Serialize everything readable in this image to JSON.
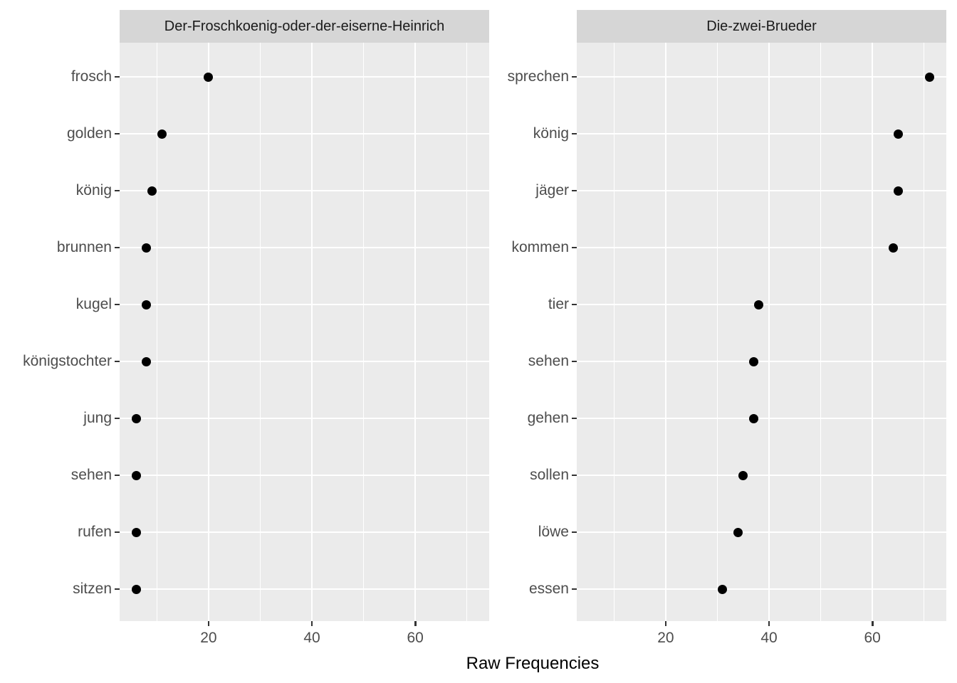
{
  "figure": {
    "xlabel": "Raw Frequencies"
  },
  "style": {
    "background": "#ffffff",
    "panel_fill": "#ebebeb",
    "strip_fill": "#d6d6d6",
    "grid_color": "#ffffff",
    "tick_color": "#333333",
    "axis_text_color": "#4d4d4d",
    "strip_text_color": "#1a1a1a",
    "point_color": "#000000"
  },
  "chart_data": [
    {
      "type": "scatter",
      "subtype": "horizontal-dot-plot",
      "facet_title": "Der-Froschkoenig-oder-der-eiserne-Heinrich",
      "categories": [
        "frosch",
        "golden",
        "könig",
        "brunnen",
        "kugel",
        "königstochter",
        "jung",
        "sehen",
        "rufen",
        "sitzen"
      ],
      "values": [
        20,
        11,
        9,
        8,
        8,
        8,
        6,
        6,
        6,
        6
      ],
      "xlabel": "Raw Frequencies",
      "xlim": [
        2.8,
        74.3
      ],
      "xticks": [
        20,
        40,
        60
      ],
      "xticks_minor": [
        10,
        30,
        50,
        70
      ],
      "grid": "on",
      "legend": "none"
    },
    {
      "type": "scatter",
      "subtype": "horizontal-dot-plot",
      "facet_title": "Die-zwei-Brueder",
      "categories": [
        "sprechen",
        "könig",
        "jäger",
        "kommen",
        "tier",
        "sehen",
        "gehen",
        "sollen",
        "löwe",
        "essen"
      ],
      "values": [
        71,
        65,
        65,
        64,
        38,
        37,
        37,
        35,
        34,
        31
      ],
      "xlabel": "Raw Frequencies",
      "xlim": [
        2.8,
        74.3
      ],
      "xticks": [
        20,
        40,
        60
      ],
      "xticks_minor": [
        10,
        30,
        50,
        70
      ],
      "grid": "on",
      "legend": "none"
    }
  ]
}
